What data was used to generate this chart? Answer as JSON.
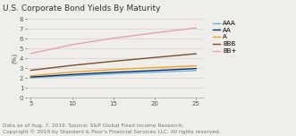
{
  "title": "U.S. Corporate Bond Yields By Maturity",
  "ylabel": "(%)",
  "footnote1": "Data as of Aug. 7, 2019. Source: S&P Global Fixed Income Research.",
  "footnote2": "Copyright © 2019 by Standard & Poor's Financial Services LLC. All rights reserved.",
  "x": [
    5,
    10,
    15,
    20,
    25
  ],
  "series": [
    {
      "label": "AAA",
      "color": "#6baed6",
      "values": [
        2.05,
        2.25,
        2.45,
        2.62,
        2.78
      ]
    },
    {
      "label": "AA",
      "color": "#08306b",
      "values": [
        2.12,
        2.38,
        2.6,
        2.78,
        2.98
      ]
    },
    {
      "label": "A",
      "color": "#f4a11d",
      "values": [
        2.25,
        2.62,
        2.88,
        3.08,
        3.25
      ]
    },
    {
      "label": "BBB",
      "color": "#7b4d2c",
      "values": [
        2.8,
        3.3,
        3.72,
        4.1,
        4.48
      ]
    },
    {
      "label": "BB+",
      "color": "#e8a0b4",
      "values": [
        4.5,
        5.4,
        6.05,
        6.6,
        7.1
      ]
    }
  ],
  "ylim": [
    0,
    8
  ],
  "yticks": [
    0,
    1,
    2,
    3,
    4,
    5,
    6,
    7,
    8
  ],
  "xlim": [
    4.5,
    26
  ],
  "xticks": [
    5,
    10,
    15,
    20,
    25
  ],
  "background_color": "#f0eeea",
  "plot_bg_color": "#f0eeea",
  "title_fontsize": 6.5,
  "label_fontsize": 5.0,
  "tick_fontsize": 5.0,
  "legend_fontsize": 5.0,
  "footnote_fontsize": 4.2,
  "linewidth": 1.0
}
